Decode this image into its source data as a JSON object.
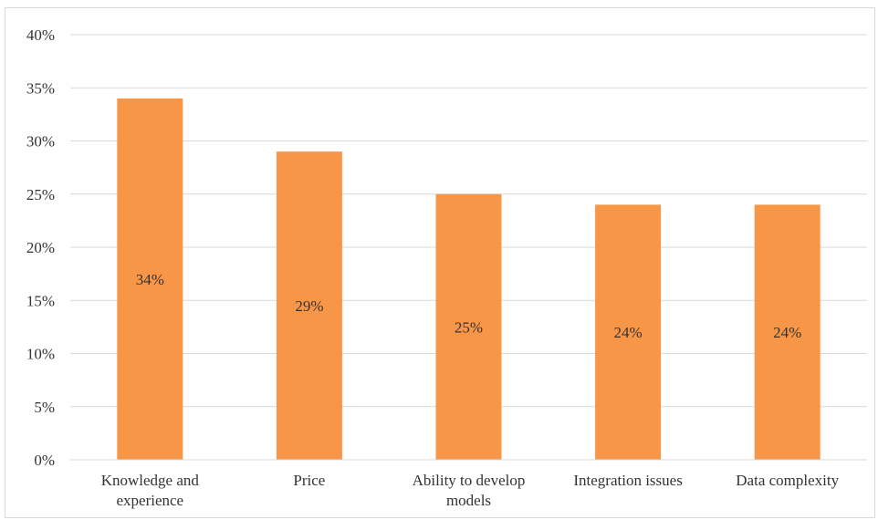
{
  "chart_data": {
    "type": "bar",
    "title": "",
    "xlabel": "",
    "ylabel": "",
    "categories": [
      [
        "Knowledge and",
        "experience"
      ],
      [
        "Price"
      ],
      [
        "Ability to develop",
        "models"
      ],
      [
        "Integration issues"
      ],
      [
        "Data complexity"
      ]
    ],
    "values": [
      34,
      29,
      25,
      24,
      24
    ],
    "data_labels": [
      "34%",
      "29%",
      "25%",
      "24%",
      "24%"
    ],
    "ylim": [
      0,
      40
    ],
    "yticks": [
      0,
      5,
      10,
      15,
      20,
      25,
      30,
      35,
      40
    ],
    "ytick_labels": [
      "0%",
      "5%",
      "10%",
      "15%",
      "20%",
      "25%",
      "30%",
      "35%",
      "40%"
    ],
    "grid": true,
    "legend": "none",
    "bar_color": "#F79646",
    "grid_color": "#d9d9d9"
  }
}
